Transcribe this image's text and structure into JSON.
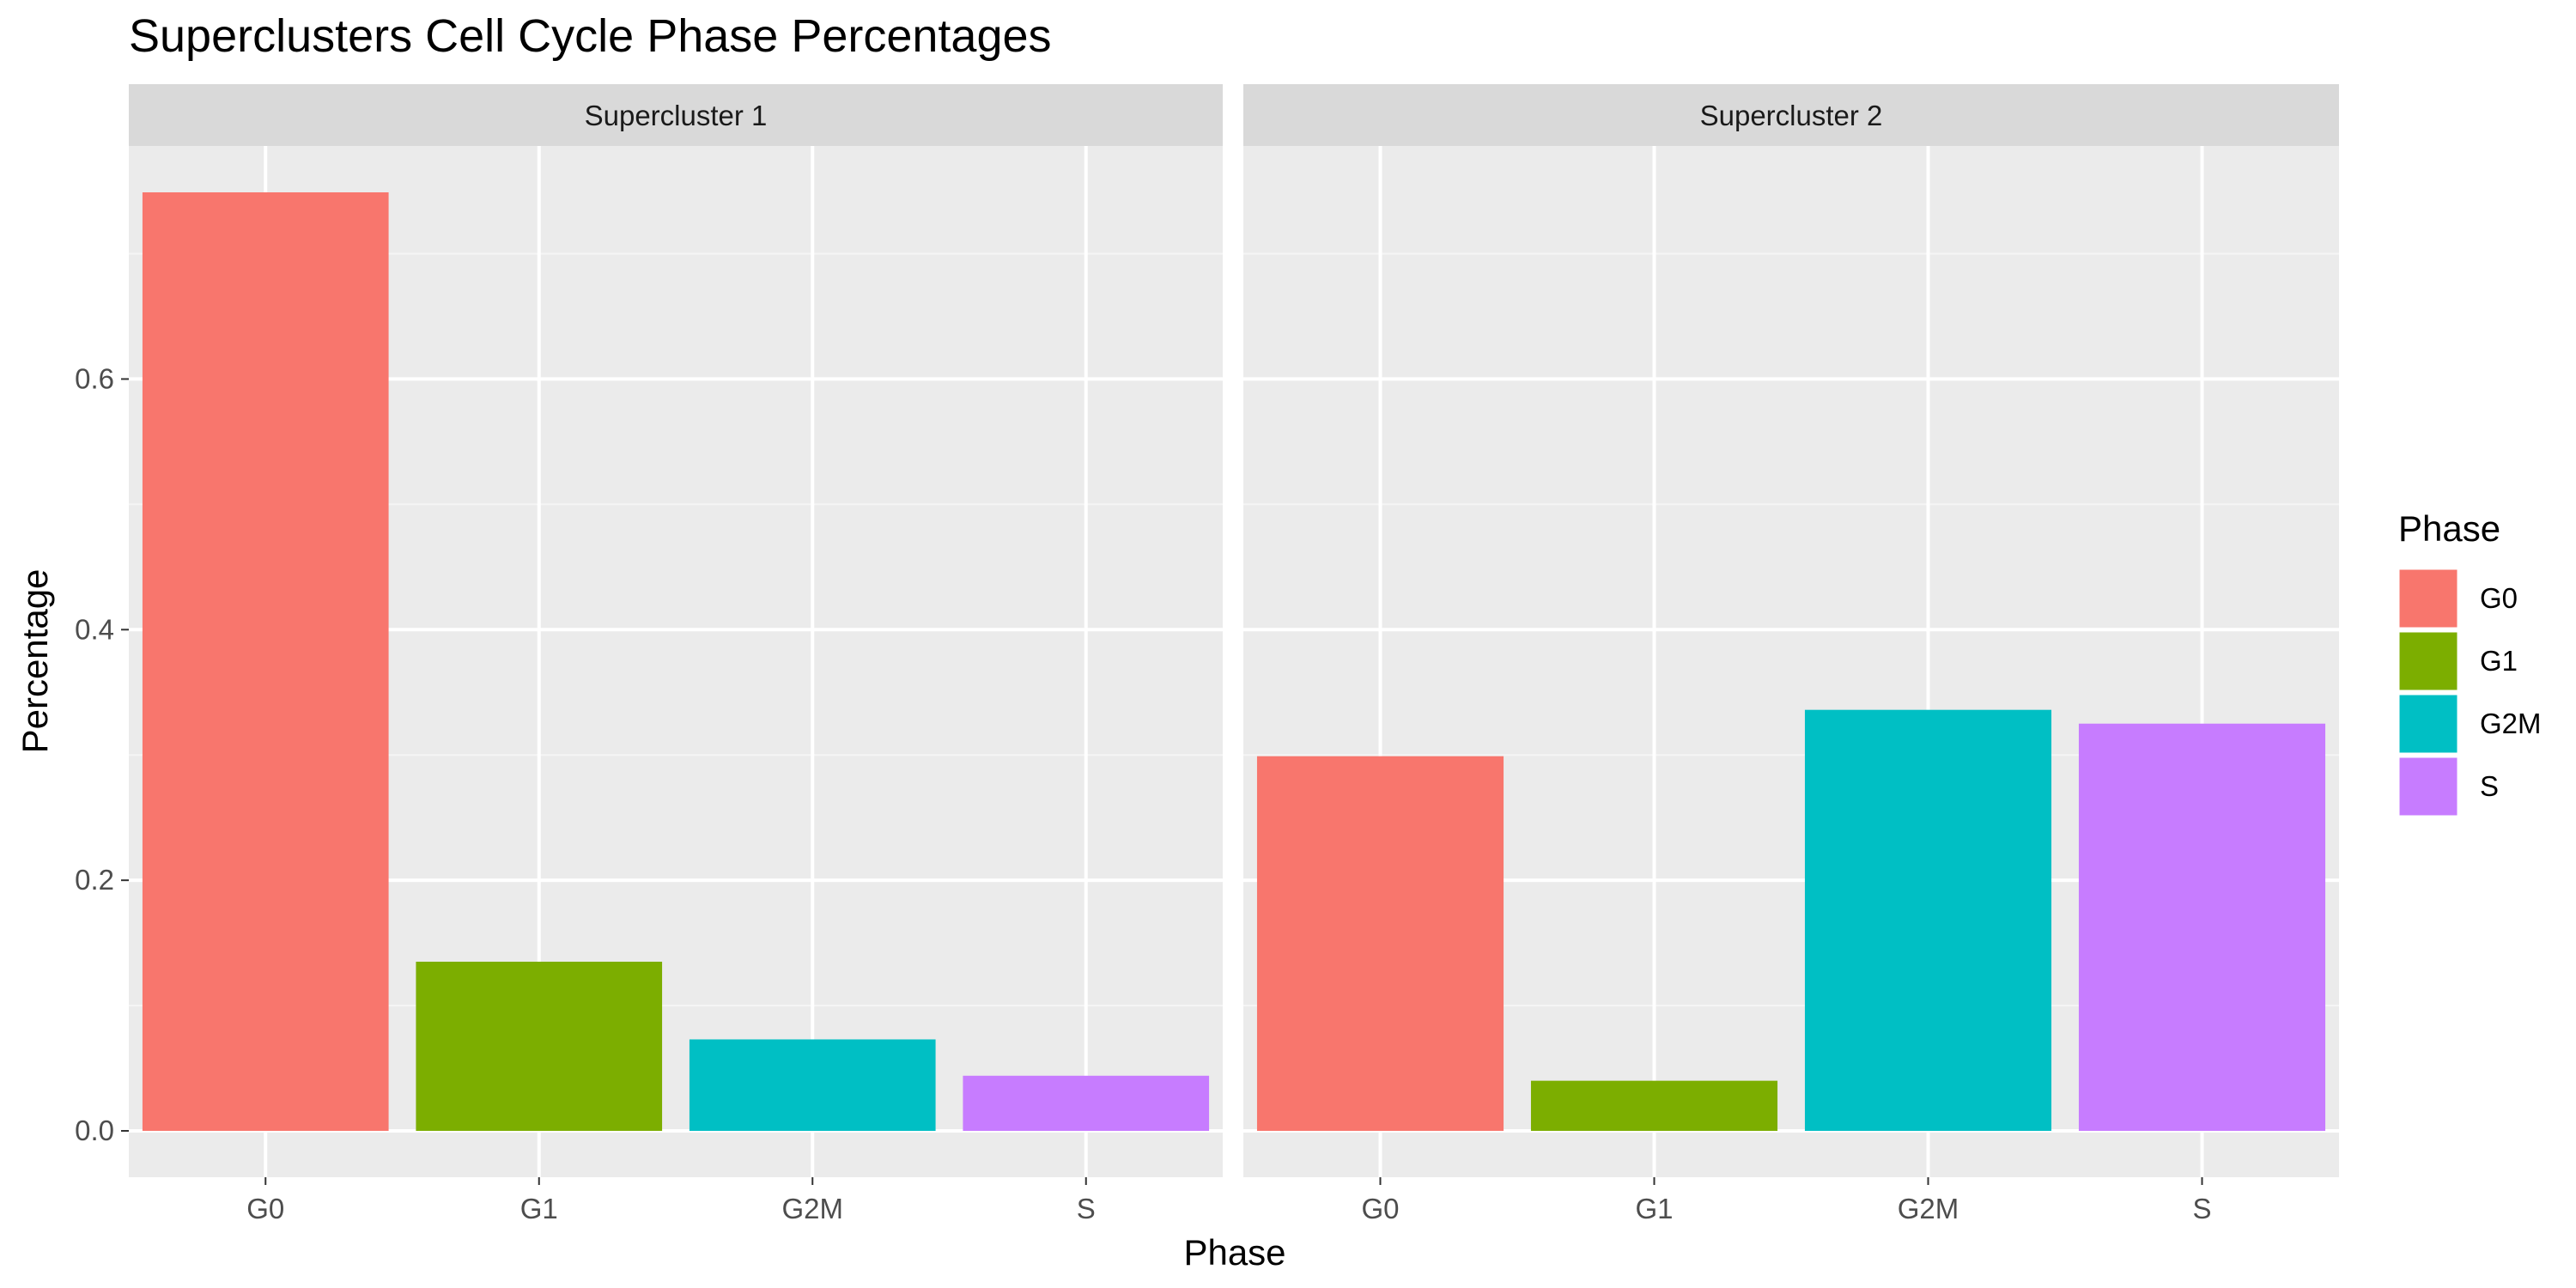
{
  "chart_data": {
    "type": "bar",
    "title": "Superclusters Cell Cycle Phase Percentages",
    "xlabel": "Phase",
    "ylabel": "Percentage",
    "categories": [
      "G0",
      "G1",
      "G2M",
      "S"
    ],
    "y_ticks": [
      0.0,
      0.2,
      0.4,
      0.6
    ],
    "y_tick_labels": [
      "0.0",
      "0.2",
      "0.4",
      "0.6"
    ],
    "ylim": [
      -0.037,
      0.786
    ],
    "grid": true,
    "legend": {
      "title": "Phase",
      "position": "right",
      "items": [
        {
          "label": "G0",
          "color": "#F8766D"
        },
        {
          "label": "G1",
          "color": "#7CAE00"
        },
        {
          "label": "G2M",
          "color": "#00BFC4"
        },
        {
          "label": "S",
          "color": "#C77CFF"
        }
      ]
    },
    "panels": [
      {
        "name": "Supercluster 1",
        "values": [
          0.749,
          0.135,
          0.073,
          0.044
        ]
      },
      {
        "name": "Supercluster 2",
        "values": [
          0.299,
          0.04,
          0.336,
          0.325
        ]
      }
    ],
    "colors": {
      "panel_background": "#EBEBEB",
      "strip_background": "#D9D9D9",
      "grid_major": "#FFFFFF",
      "grid_minor": "#F5F5F5"
    }
  }
}
